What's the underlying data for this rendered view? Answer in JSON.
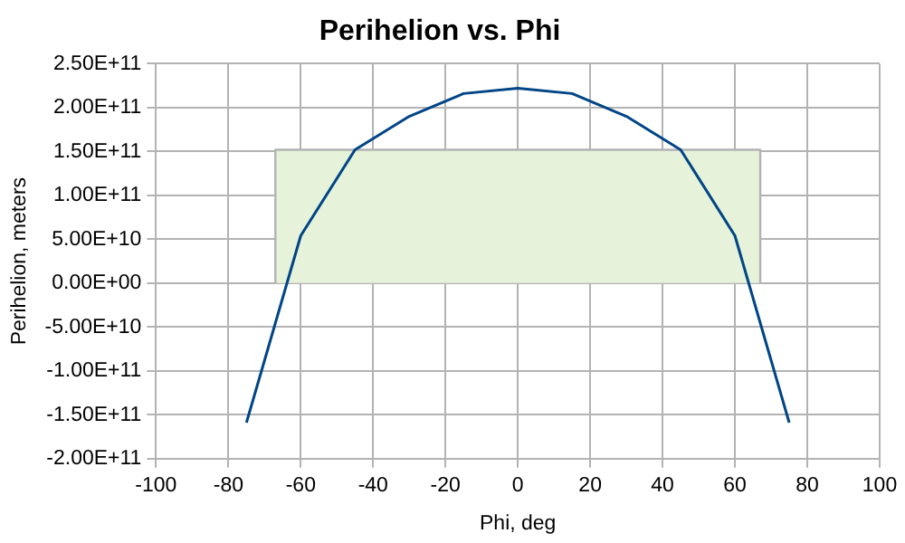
{
  "chart_data": {
    "type": "line",
    "title": "Perihelion vs. Phi",
    "xlabel": "Phi, deg",
    "ylabel": "Perihelion, meters",
    "series": [
      {
        "type": "area",
        "color": "#e6f2da",
        "x": [
          -67,
          -67,
          67,
          67
        ],
        "values": [
          0,
          152000000000.0,
          152000000000.0,
          0
        ]
      },
      {
        "type": "line",
        "color": "#004586",
        "x": [
          -75,
          -60,
          -45,
          -30,
          -15,
          0,
          15,
          30,
          45,
          60,
          75
        ],
        "values": [
          -159000000000.0,
          54000000000.0,
          152000000000.0,
          190000000000.0,
          216000000000.0,
          222000000000.0,
          216000000000.0,
          190000000000.0,
          152000000000.0,
          54000000000.0,
          -159000000000.0
        ]
      }
    ],
    "xlim": [
      -100,
      100
    ],
    "xticks": [
      -100,
      -80,
      -60,
      -40,
      -20,
      0,
      20,
      40,
      60,
      80,
      100
    ],
    "ylim": [
      -200000000000.0,
      250000000000.0
    ],
    "yticks": [
      {
        "value": -200000000000.0,
        "label": "-2.00E+11"
      },
      {
        "value": -150000000000.0,
        "label": "-1.50E+11"
      },
      {
        "value": -100000000000.0,
        "label": "-1.00E+11"
      },
      {
        "value": -50000000000.0,
        "label": "-5.00E+10"
      },
      {
        "value": 0,
        "label": "0.00E+00"
      },
      {
        "value": 50000000000.0,
        "label": "5.00E+10"
      },
      {
        "value": 100000000000.0,
        "label": "1.00E+11"
      },
      {
        "value": 150000000000.0,
        "label": "1.50E+11"
      },
      {
        "value": 200000000000.0,
        "label": "2.00E+11"
      },
      {
        "value": 250000000000.0,
        "label": "2.50E+11"
      }
    ],
    "grid": true,
    "marker": "none",
    "line_style": "solid"
  }
}
